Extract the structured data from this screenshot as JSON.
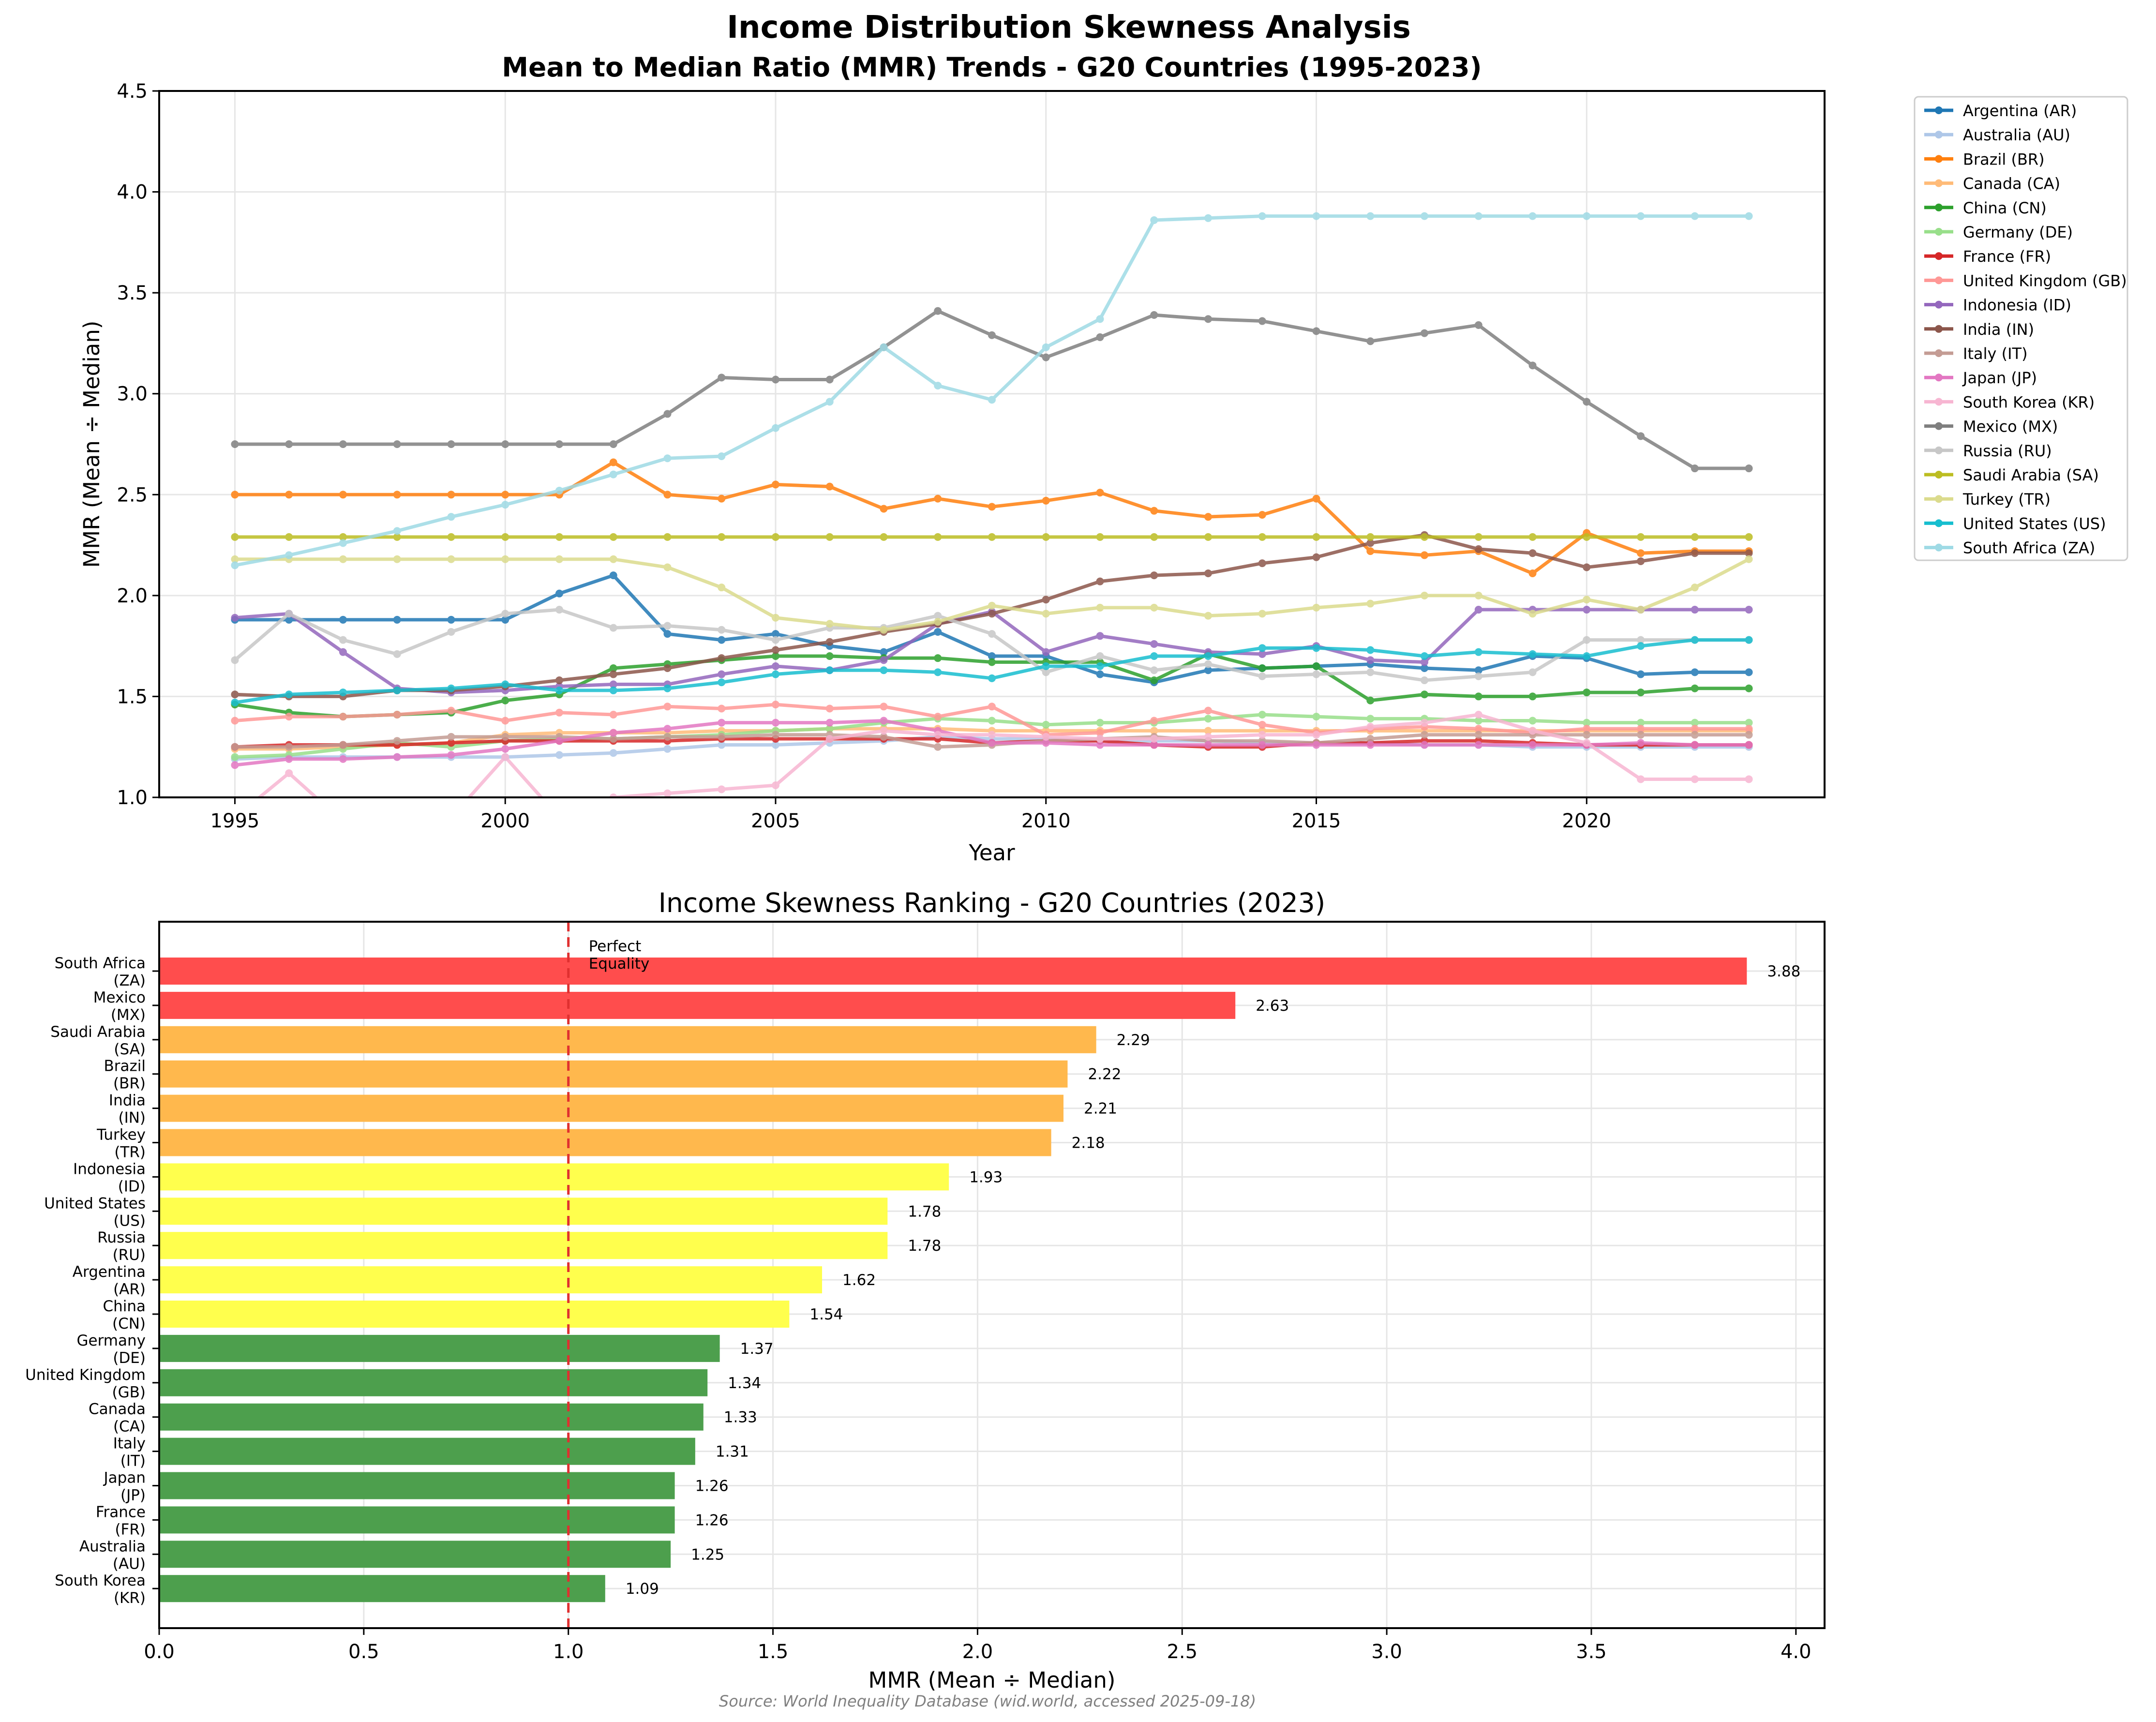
{
  "figure": {
    "suptitle": "Income Distribution Skewness Analysis",
    "source": "Source: World Inequality Database (wid.world, accessed 2025-09-18)"
  },
  "chart_data": [
    {
      "type": "line",
      "title": "Mean to Median Ratio (MMR) Trends - G20 Countries (1995-2023)",
      "xlabel": "Year",
      "ylabel": "MMR (Mean ÷ Median)",
      "xlim": [
        1993.6,
        2024.4
      ],
      "ylim": [
        1.0,
        4.5
      ],
      "xticks": [
        1995,
        2000,
        2005,
        2010,
        2015,
        2020
      ],
      "yticks": [
        1.0,
        1.5,
        2.0,
        2.5,
        3.0,
        3.5,
        4.0,
        4.5
      ],
      "grid": true,
      "legend_position": "outside-right",
      "reference_line": {
        "y": 1.0,
        "style": "dashed",
        "color": "#b04020"
      },
      "x": [
        1995,
        1996,
        1997,
        1998,
        1999,
        2000,
        2001,
        2002,
        2003,
        2004,
        2005,
        2006,
        2007,
        2008,
        2009,
        2010,
        2011,
        2012,
        2013,
        2014,
        2015,
        2016,
        2017,
        2018,
        2019,
        2020,
        2021,
        2022,
        2023
      ],
      "series": [
        {
          "name": "Argentina (AR)",
          "color": "#1f77b4",
          "values": [
            1.88,
            1.88,
            1.88,
            1.88,
            1.88,
            1.88,
            2.01,
            2.1,
            1.81,
            1.78,
            1.81,
            1.75,
            1.72,
            1.82,
            1.7,
            1.7,
            1.61,
            1.57,
            1.63,
            1.64,
            1.65,
            1.66,
            1.64,
            1.63,
            1.7,
            1.69,
            1.61,
            1.62,
            1.62
          ]
        },
        {
          "name": "Australia (AU)",
          "color": "#aec7e8",
          "values": [
            1.19,
            1.2,
            1.2,
            1.2,
            1.2,
            1.2,
            1.21,
            1.22,
            1.24,
            1.26,
            1.26,
            1.27,
            1.28,
            1.3,
            1.29,
            1.29,
            1.28,
            1.28,
            1.28,
            1.27,
            1.27,
            1.27,
            1.26,
            1.26,
            1.25,
            1.25,
            1.25,
            1.25,
            1.25
          ]
        },
        {
          "name": "Brazil (BR)",
          "color": "#ff7f0e",
          "values": [
            2.5,
            2.5,
            2.5,
            2.5,
            2.5,
            2.5,
            2.5,
            2.66,
            2.5,
            2.48,
            2.55,
            2.54,
            2.43,
            2.48,
            2.44,
            2.47,
            2.51,
            2.42,
            2.39,
            2.4,
            2.48,
            2.22,
            2.2,
            2.22,
            2.11,
            2.31,
            2.21,
            2.22,
            2.22
          ]
        },
        {
          "name": "Canada (CA)",
          "color": "#ffbb78",
          "values": [
            1.24,
            1.24,
            1.25,
            1.26,
            1.27,
            1.31,
            1.32,
            1.32,
            1.32,
            1.33,
            1.33,
            1.34,
            1.34,
            1.34,
            1.33,
            1.33,
            1.33,
            1.33,
            1.33,
            1.33,
            1.33,
            1.33,
            1.33,
            1.33,
            1.33,
            1.33,
            1.33,
            1.33,
            1.33
          ]
        },
        {
          "name": "China (CN)",
          "color": "#2ca02c",
          "values": [
            1.46,
            1.42,
            1.4,
            1.41,
            1.42,
            1.48,
            1.51,
            1.64,
            1.66,
            1.68,
            1.7,
            1.7,
            1.69,
            1.69,
            1.67,
            1.67,
            1.67,
            1.58,
            1.71,
            1.64,
            1.65,
            1.48,
            1.51,
            1.5,
            1.5,
            1.52,
            1.52,
            1.54,
            1.54
          ]
        },
        {
          "name": "Germany (DE)",
          "color": "#98df8a",
          "values": [
            1.2,
            1.21,
            1.24,
            1.27,
            1.25,
            1.28,
            1.29,
            1.29,
            1.3,
            1.31,
            1.33,
            1.34,
            1.37,
            1.39,
            1.38,
            1.36,
            1.37,
            1.37,
            1.39,
            1.41,
            1.4,
            1.39,
            1.39,
            1.38,
            1.38,
            1.37,
            1.37,
            1.37,
            1.37
          ]
        },
        {
          "name": "France (FR)",
          "color": "#d62728",
          "values": [
            1.25,
            1.26,
            1.26,
            1.26,
            1.27,
            1.28,
            1.28,
            1.28,
            1.28,
            1.29,
            1.29,
            1.29,
            1.29,
            1.29,
            1.27,
            1.28,
            1.28,
            1.26,
            1.25,
            1.25,
            1.27,
            1.27,
            1.28,
            1.28,
            1.27,
            1.26,
            1.26,
            1.26,
            1.26
          ]
        },
        {
          "name": "United Kingdom (GB)",
          "color": "#ff9896",
          "values": [
            1.38,
            1.4,
            1.4,
            1.41,
            1.43,
            1.38,
            1.42,
            1.41,
            1.45,
            1.44,
            1.46,
            1.44,
            1.45,
            1.4,
            1.45,
            1.31,
            1.32,
            1.38,
            1.43,
            1.36,
            1.32,
            1.34,
            1.35,
            1.34,
            1.32,
            1.34,
            1.34,
            1.34,
            1.34
          ]
        },
        {
          "name": "Indonesia (ID)",
          "color": "#9467bd",
          "values": [
            1.89,
            1.91,
            1.72,
            1.54,
            1.52,
            1.53,
            1.55,
            1.56,
            1.56,
            1.61,
            1.65,
            1.63,
            1.68,
            1.86,
            1.92,
            1.72,
            1.8,
            1.76,
            1.72,
            1.71,
            1.75,
            1.68,
            1.67,
            1.93,
            1.93,
            1.93,
            1.93,
            1.93,
            1.93
          ]
        },
        {
          "name": "India (IN)",
          "color": "#8c564b",
          "values": [
            1.51,
            1.5,
            1.5,
            1.53,
            1.53,
            1.55,
            1.58,
            1.61,
            1.64,
            1.69,
            1.73,
            1.77,
            1.82,
            1.86,
            1.91,
            1.98,
            2.07,
            2.1,
            2.11,
            2.16,
            2.19,
            2.26,
            2.3,
            2.23,
            2.21,
            2.14,
            2.17,
            2.21,
            2.21
          ]
        },
        {
          "name": "Italy (IT)",
          "color": "#c49c94",
          "values": [
            1.25,
            1.25,
            1.26,
            1.28,
            1.3,
            1.3,
            1.3,
            1.29,
            1.3,
            1.3,
            1.31,
            1.31,
            1.3,
            1.25,
            1.26,
            1.28,
            1.29,
            1.3,
            1.28,
            1.28,
            1.27,
            1.29,
            1.31,
            1.31,
            1.31,
            1.31,
            1.31,
            1.31,
            1.31
          ]
        },
        {
          "name": "Japan (JP)",
          "color": "#e377c2",
          "values": [
            1.16,
            1.19,
            1.19,
            1.2,
            1.21,
            1.24,
            1.28,
            1.32,
            1.34,
            1.37,
            1.37,
            1.37,
            1.38,
            1.33,
            1.27,
            1.27,
            1.26,
            1.26,
            1.26,
            1.26,
            1.26,
            1.26,
            1.26,
            1.26,
            1.26,
            1.26,
            1.27,
            1.26,
            1.26
          ]
        },
        {
          "name": "South Korea (KR)",
          "color": "#f7b6d2",
          "values": [
            0.9,
            1.12,
            0.88,
            0.88,
            0.9,
            1.2,
            0.9,
            1.0,
            1.02,
            1.04,
            1.06,
            1.29,
            1.33,
            1.31,
            1.31,
            1.3,
            1.29,
            1.29,
            1.3,
            1.31,
            1.31,
            1.35,
            1.37,
            1.41,
            1.33,
            1.27,
            1.09,
            1.09,
            1.09
          ]
        },
        {
          "name": "Mexico (MX)",
          "color": "#7f7f7f",
          "values": [
            2.75,
            2.75,
            2.75,
            2.75,
            2.75,
            2.75,
            2.75,
            2.75,
            2.9,
            3.08,
            3.07,
            3.07,
            3.23,
            3.41,
            3.29,
            3.18,
            3.28,
            3.39,
            3.37,
            3.36,
            3.31,
            3.26,
            3.3,
            3.34,
            3.14,
            2.96,
            2.79,
            2.63,
            2.63
          ]
        },
        {
          "name": "Russia (RU)",
          "color": "#c7c7c7",
          "values": [
            1.68,
            1.91,
            1.78,
            1.71,
            1.82,
            1.91,
            1.93,
            1.84,
            1.85,
            1.83,
            1.78,
            1.84,
            1.84,
            1.9,
            1.81,
            1.62,
            1.7,
            1.63,
            1.66,
            1.6,
            1.61,
            1.62,
            1.58,
            1.6,
            1.62,
            1.78,
            1.78,
            1.78,
            1.78
          ]
        },
        {
          "name": "Saudi Arabia (SA)",
          "color": "#bcbd22",
          "values": [
            2.29,
            2.29,
            2.29,
            2.29,
            2.29,
            2.29,
            2.29,
            2.29,
            2.29,
            2.29,
            2.29,
            2.29,
            2.29,
            2.29,
            2.29,
            2.29,
            2.29,
            2.29,
            2.29,
            2.29,
            2.29,
            2.29,
            2.29,
            2.29,
            2.29,
            2.29,
            2.29,
            2.29,
            2.29
          ]
        },
        {
          "name": "Turkey (TR)",
          "color": "#dbdb8d",
          "values": [
            2.18,
            2.18,
            2.18,
            2.18,
            2.18,
            2.18,
            2.18,
            2.18,
            2.14,
            2.04,
            1.89,
            1.86,
            1.83,
            1.87,
            1.95,
            1.91,
            1.94,
            1.94,
            1.9,
            1.91,
            1.94,
            1.96,
            2.0,
            2.0,
            1.91,
            1.98,
            1.93,
            2.04,
            2.18
          ]
        },
        {
          "name": "United States (US)",
          "color": "#17becf",
          "values": [
            1.47,
            1.51,
            1.52,
            1.53,
            1.54,
            1.56,
            1.53,
            1.53,
            1.54,
            1.57,
            1.61,
            1.63,
            1.63,
            1.62,
            1.59,
            1.65,
            1.65,
            1.7,
            1.7,
            1.74,
            1.74,
            1.73,
            1.7,
            1.72,
            1.71,
            1.7,
            1.75,
            1.78,
            1.78
          ]
        },
        {
          "name": "South Africa (ZA)",
          "color": "#9edae5",
          "values": [
            2.15,
            2.2,
            2.26,
            2.32,
            2.39,
            2.45,
            2.52,
            2.6,
            2.68,
            2.69,
            2.83,
            2.96,
            3.23,
            3.04,
            2.97,
            3.23,
            3.37,
            3.86,
            3.87,
            3.88,
            3.88,
            3.88,
            3.88,
            3.88,
            3.88,
            3.88,
            3.88,
            3.88,
            3.88
          ]
        }
      ]
    },
    {
      "type": "bar",
      "orientation": "horizontal",
      "title": "Income Skewness Ranking - G20 Countries (2023)",
      "xlabel": "MMR (Mean ÷ Median)",
      "xlim": [
        0,
        4.07
      ],
      "xticks": [
        0.0,
        0.5,
        1.0,
        1.5,
        2.0,
        2.5,
        3.0,
        3.5,
        4.0
      ],
      "grid": true,
      "reference_line": {
        "x": 1.0,
        "label": "Perfect\nEquality",
        "color": "#e03030",
        "style": "dashed"
      },
      "categories": [
        "South Africa\n(ZA)",
        "Mexico\n(MX)",
        "Saudi Arabia\n(SA)",
        "Brazil\n(BR)",
        "India\n(IN)",
        "Turkey\n(TR)",
        "Indonesia\n(ID)",
        "United States\n(US)",
        "Russia\n(RU)",
        "Argentina\n(AR)",
        "China\n(CN)",
        "Germany\n(DE)",
        "United Kingdom\n(GB)",
        "Canada\n(CA)",
        "Italy\n(IT)",
        "Japan\n(JP)",
        "France\n(FR)",
        "Australia\n(AU)",
        "South Korea\n(KR)"
      ],
      "values": [
        3.88,
        2.63,
        2.29,
        2.22,
        2.21,
        2.18,
        1.93,
        1.78,
        1.78,
        1.62,
        1.54,
        1.37,
        1.34,
        1.33,
        1.31,
        1.26,
        1.26,
        1.25,
        1.09
      ],
      "value_labels": [
        "3.88",
        "2.63",
        "2.29",
        "2.22",
        "2.21",
        "2.18",
        "1.93",
        "1.78",
        "1.78",
        "1.62",
        "1.54",
        "1.37",
        "1.34",
        "1.33",
        "1.31",
        "1.26",
        "1.26",
        "1.25",
        "1.09"
      ],
      "bar_colors": [
        "#ff4d4d",
        "#ff4d4d",
        "#ffb84d",
        "#ffb84d",
        "#ffb84d",
        "#ffb84d",
        "#ffff4d",
        "#ffff4d",
        "#ffff4d",
        "#ffff4d",
        "#ffff4d",
        "#4d9f4d",
        "#4d9f4d",
        "#4d9f4d",
        "#4d9f4d",
        "#4d9f4d",
        "#4d9f4d",
        "#4d9f4d",
        "#4d9f4d"
      ]
    }
  ]
}
